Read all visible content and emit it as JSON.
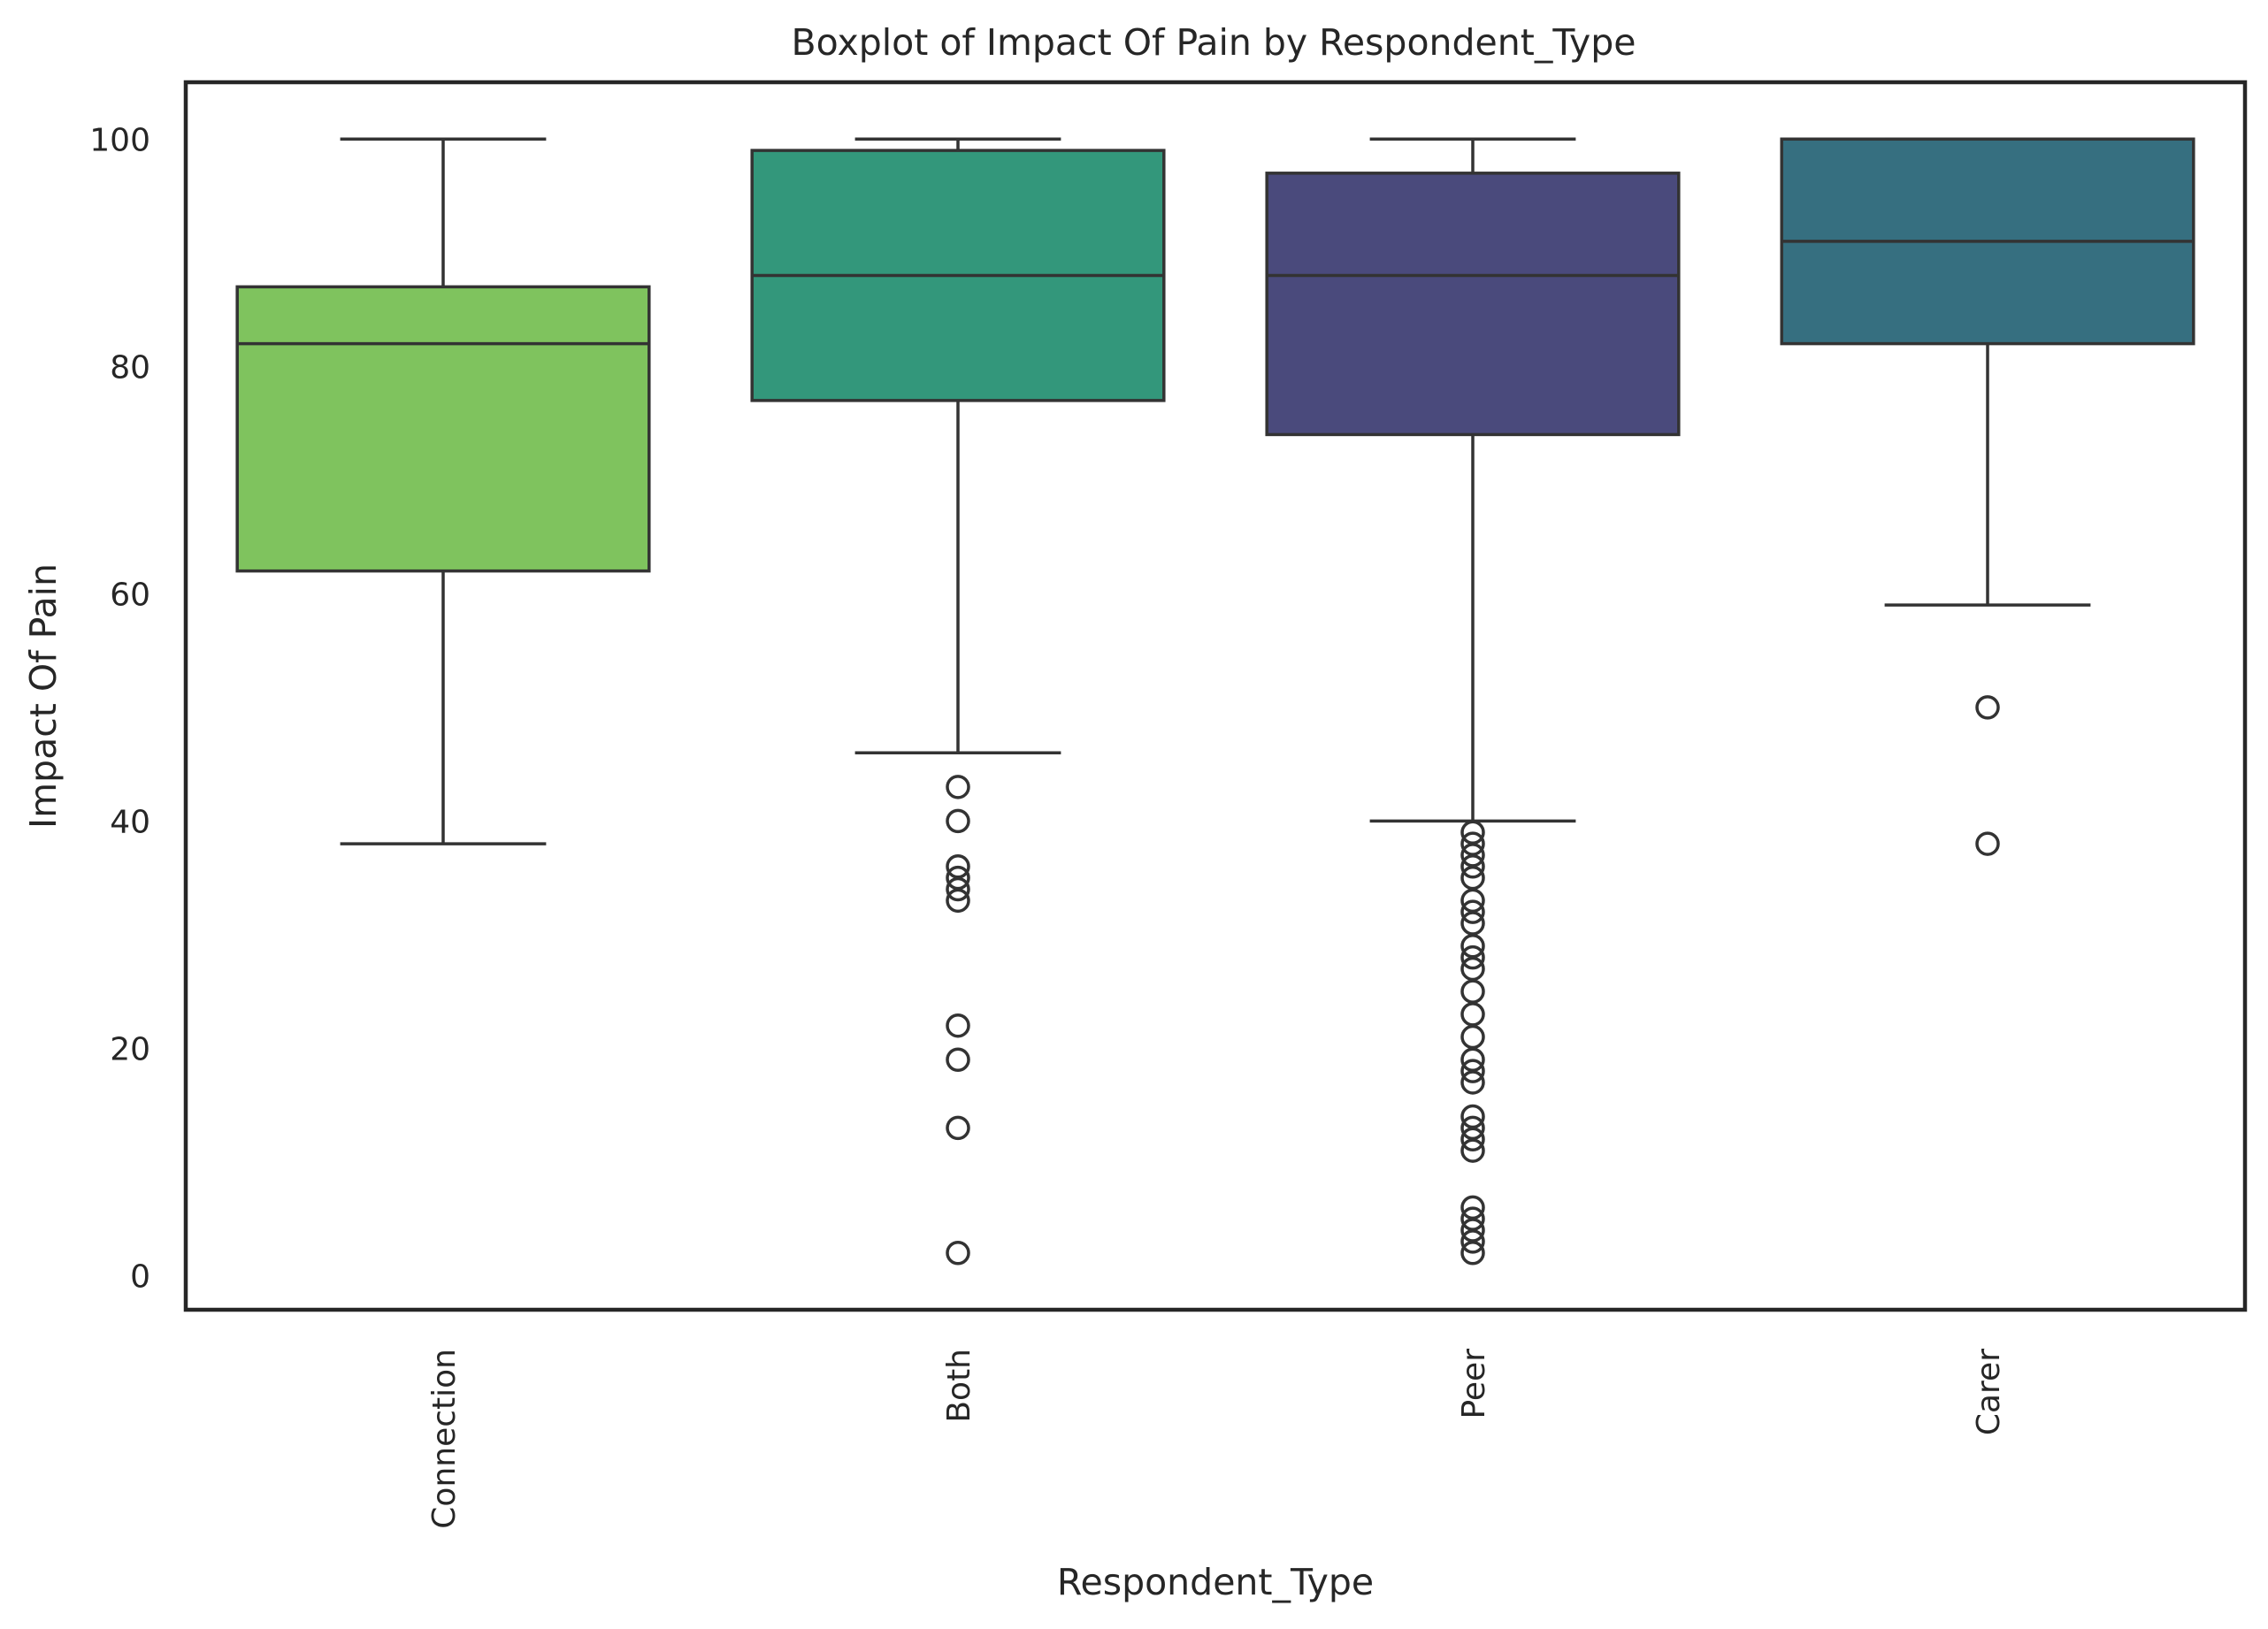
{
  "chart_data": {
    "type": "boxplot",
    "title": "Boxplot of Impact Of Pain by Respondent_Type",
    "xlabel": "Respondent_Type",
    "ylabel": "Impact Of Pain",
    "ylim": [
      -3,
      105
    ],
    "yticks": [
      0,
      20,
      40,
      60,
      80,
      100
    ],
    "grid": false,
    "categories": [
      "Connection",
      "Both",
      "Peer",
      "Carer"
    ],
    "colors": [
      "#7fc35e",
      "#33977b",
      "#4a4a7c",
      "#366f80"
    ],
    "boxes": [
      {
        "category": "Connection",
        "whisker_low": 38,
        "q1": 62,
        "median": 82,
        "q3": 87,
        "whisker_high": 100,
        "outliers": []
      },
      {
        "category": "Both",
        "whisker_low": 46,
        "q1": 77,
        "median": 88,
        "q3": 99,
        "whisker_high": 100,
        "outliers": [
          43,
          40,
          36,
          35,
          34,
          33,
          22,
          19,
          13,
          2
        ]
      },
      {
        "category": "Peer",
        "whisker_low": 40,
        "q1": 74,
        "median": 88,
        "q3": 97,
        "whisker_high": 100,
        "outliers": [
          39,
          38,
          37,
          36,
          35,
          33,
          32,
          31,
          29,
          28,
          27,
          25,
          23,
          21,
          19,
          18,
          17,
          14,
          13,
          12,
          11,
          6,
          5,
          4,
          3,
          2
        ]
      },
      {
        "category": "Carer",
        "whisker_low": 59,
        "q1": 82,
        "median": 91,
        "q3": 100,
        "whisker_high": 100,
        "outliers": [
          50,
          38
        ]
      }
    ]
  }
}
